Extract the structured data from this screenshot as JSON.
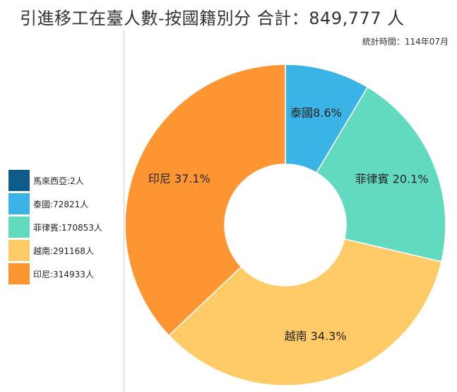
{
  "header": {
    "title": "引進移工在臺人數-按國籍別分 合計：849,777 人",
    "stat_time": "統計時間：114年07月"
  },
  "chart_data": {
    "type": "pie",
    "donut": true,
    "title": "引進移工在臺人數-按國籍別分 合計：849,777 人",
    "total": 849777,
    "legend_position": "left",
    "slices": [
      {
        "name": "馬來西亞",
        "value": 2,
        "color": "#0f5b8a",
        "slice_label": ""
      },
      {
        "name": "泰國",
        "value": 72821,
        "color": "#3ab4e6",
        "slice_label": "泰國8.6%"
      },
      {
        "name": "菲律賓",
        "value": 170853,
        "color": "#62dac0",
        "slice_label": "菲律賓 20.1%"
      },
      {
        "name": "越南",
        "value": 291168,
        "color": "#ffcb66",
        "slice_label": "越南 34.3%"
      },
      {
        "name": "印尼",
        "value": 314933,
        "color": "#fd9530",
        "slice_label": "印尼 37.1%"
      }
    ],
    "legend": [
      "馬來西亞:2人",
      "泰國:72821人",
      "菲律賓:170853人",
      "越南:291168人",
      "印尼:314933人"
    ]
  }
}
